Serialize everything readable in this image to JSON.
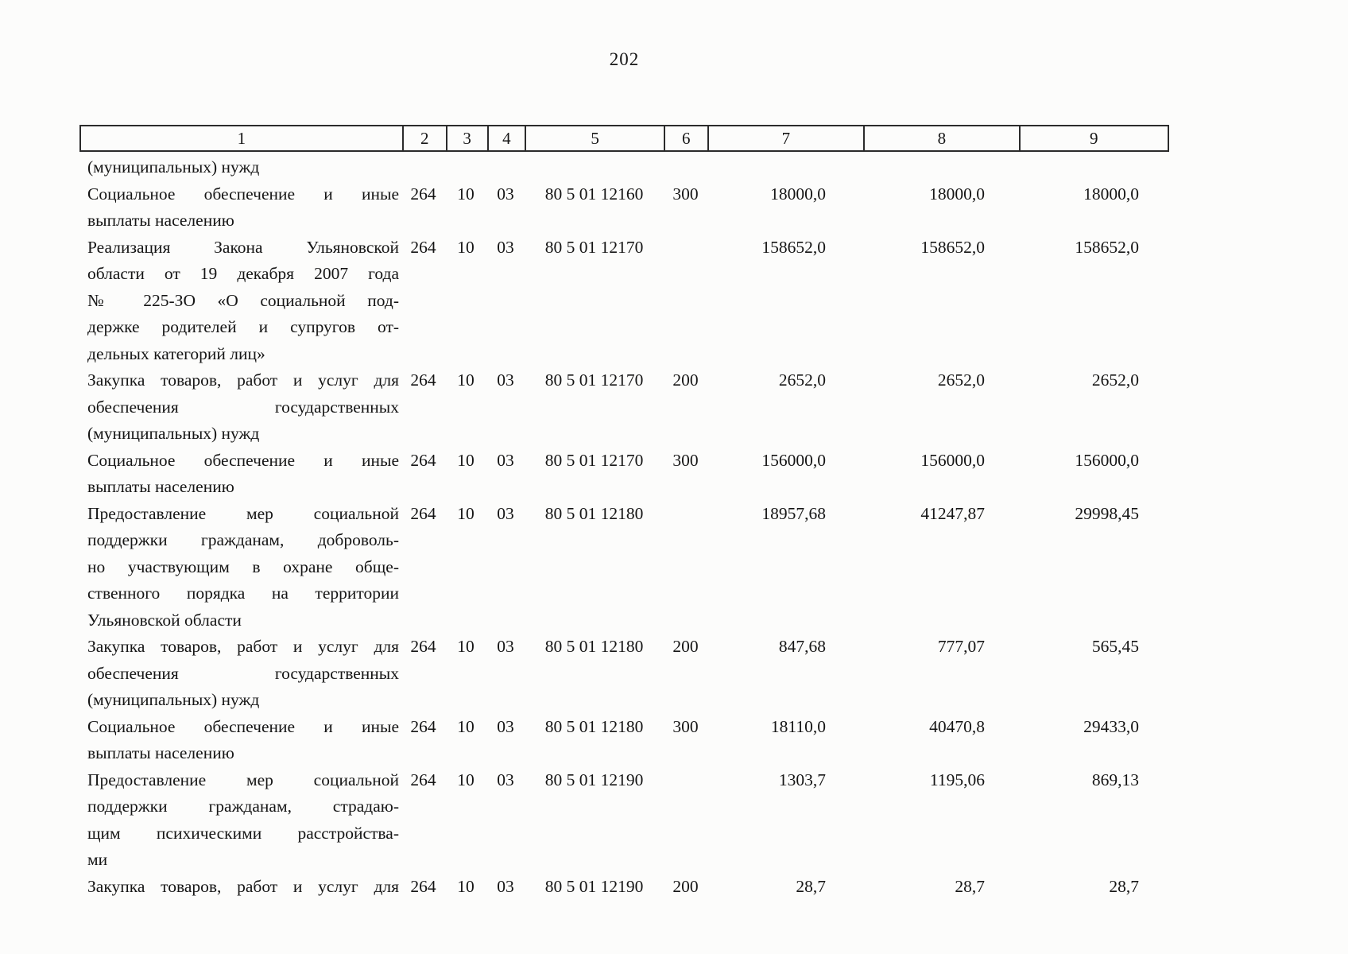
{
  "page": {
    "number": "202"
  },
  "table": {
    "header": [
      "1",
      "2",
      "3",
      "4",
      "5",
      "6",
      "7",
      "8",
      "9"
    ],
    "rows": [
      {
        "lines": [
          "(муниципальных) нужд"
        ],
        "justify_last": false,
        "c2": "",
        "c3": "",
        "c4": "",
        "c5": "",
        "c6": "",
        "c7": "",
        "c8": "",
        "c9": ""
      },
      {
        "lines": [
          "Социальное обеспечение и иные",
          "выплаты населению"
        ],
        "justify_last": false,
        "c2": "264",
        "c3": "10",
        "c4": "03",
        "c5": "80 5 01 12160",
        "c6": "300",
        "c7": "18000,0",
        "c8": "18000,0",
        "c9": "18000,0"
      },
      {
        "lines": [
          "Реализация Закона Ульяновской",
          "области от 19 декабря 2007 года",
          "№ 225-ЗО «О социальной под-",
          "держке родителей и супругов от-",
          "дельных категорий лиц»"
        ],
        "justify_last": false,
        "c2": "264",
        "c3": "10",
        "c4": "03",
        "c5": "80 5 01 12170",
        "c6": "",
        "c7": "158652,0",
        "c8": "158652,0",
        "c9": "158652,0"
      },
      {
        "lines": [
          "Закупка товаров, работ и услуг для",
          "обеспечения государственных",
          "(муниципальных) нужд"
        ],
        "justify_last": false,
        "c2": "264",
        "c3": "10",
        "c4": "03",
        "c5": "80 5 01 12170",
        "c6": "200",
        "c7": "2652,0",
        "c8": "2652,0",
        "c9": "2652,0"
      },
      {
        "lines": [
          "Социальное обеспечение и иные",
          "выплаты населению"
        ],
        "justify_last": false,
        "c2": "264",
        "c3": "10",
        "c4": "03",
        "c5": "80 5 01 12170",
        "c6": "300",
        "c7": "156000,0",
        "c8": "156000,0",
        "c9": "156000,0"
      },
      {
        "lines": [
          "Предоставление мер социальной",
          "поддержки гражданам, доброволь-",
          "но участвующим в охране обще-",
          "ственного порядка на территории",
          "Ульяновской области"
        ],
        "justify_last": false,
        "c2": "264",
        "c3": "10",
        "c4": "03",
        "c5": "80 5 01 12180",
        "c6": "",
        "c7": "18957,68",
        "c8": "41247,87",
        "c9": "29998,45"
      },
      {
        "lines": [
          "Закупка товаров, работ и услуг для",
          "обеспечения государственных",
          "(муниципальных) нужд"
        ],
        "justify_last": false,
        "c2": "264",
        "c3": "10",
        "c4": "03",
        "c5": "80 5 01 12180",
        "c6": "200",
        "c7": "847,68",
        "c8": "777,07",
        "c9": "565,45"
      },
      {
        "lines": [
          "Социальное обеспечение и иные",
          "выплаты населению"
        ],
        "justify_last": false,
        "c2": "264",
        "c3": "10",
        "c4": "03",
        "c5": "80 5 01 12180",
        "c6": "300",
        "c7": "18110,0",
        "c8": "40470,8",
        "c9": "29433,0"
      },
      {
        "lines": [
          "Предоставление мер социальной",
          "поддержки гражданам, страдаю-",
          "щим психическими расстройства-",
          "ми"
        ],
        "justify_last": false,
        "c2": "264",
        "c3": "10",
        "c4": "03",
        "c5": "80 5 01 12190",
        "c6": "",
        "c7": "1303,7",
        "c8": "1195,06",
        "c9": "869,13"
      },
      {
        "lines": [
          "Закупка товаров, работ и услуг для"
        ],
        "justify_last": true,
        "c2": "264",
        "c3": "10",
        "c4": "03",
        "c5": "80 5 01 12190",
        "c6": "200",
        "c7": "28,7",
        "c8": "28,7",
        "c9": "28,7"
      }
    ]
  }
}
